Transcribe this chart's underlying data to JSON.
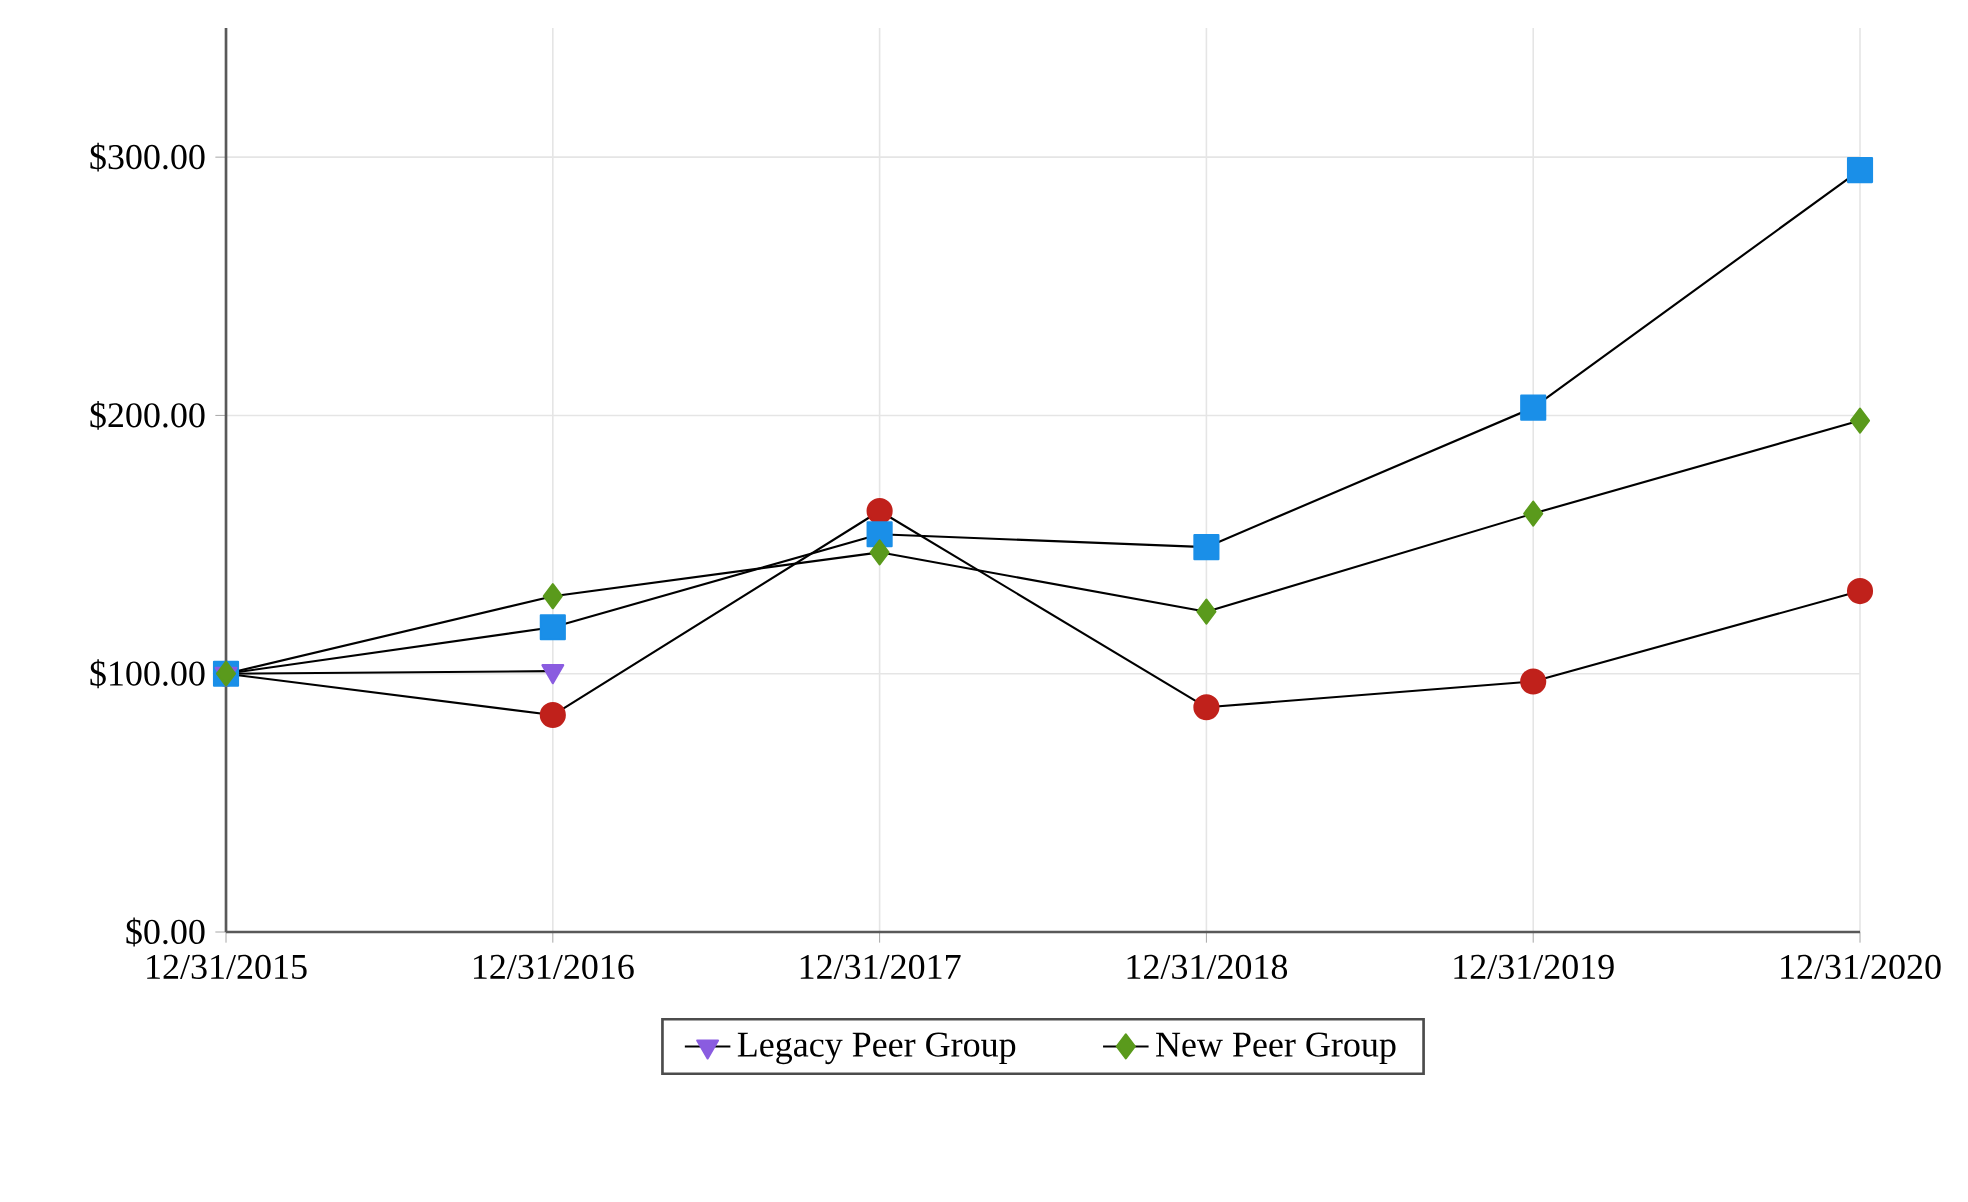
{
  "chart_data": {
    "type": "line",
    "categories": [
      "12/31/2015",
      "12/31/2016",
      "12/31/2017",
      "12/31/2018",
      "12/31/2019",
      "12/31/2020"
    ],
    "series": [
      {
        "color": "#c0211b",
        "marker": "circle",
        "values": [
          100,
          84,
          163,
          87,
          97,
          132
        ]
      },
      {
        "color": "#1a8fe8",
        "marker": "square",
        "values": [
          100,
          118,
          154,
          149,
          203,
          295
        ]
      },
      {
        "name": "Legacy Peer Group",
        "color": "#8a5ce0",
        "marker": "triangle",
        "values": [
          100,
          101,
          null,
          null,
          null,
          null
        ]
      },
      {
        "name": "New Peer Group",
        "color": "#5a9a1c",
        "marker": "diamond",
        "values": [
          100,
          130,
          147,
          124,
          162,
          198
        ]
      }
    ],
    "ylim": [
      0,
      350
    ],
    "yticks": [
      {
        "value": 0,
        "label": "$0.00"
      },
      {
        "value": 100,
        "label": "$100.00"
      },
      {
        "value": 200,
        "label": "$200.00"
      },
      {
        "value": 300,
        "label": "$300.00"
      }
    ],
    "grid": true,
    "legend": "bottom",
    "line_style": "solid"
  }
}
